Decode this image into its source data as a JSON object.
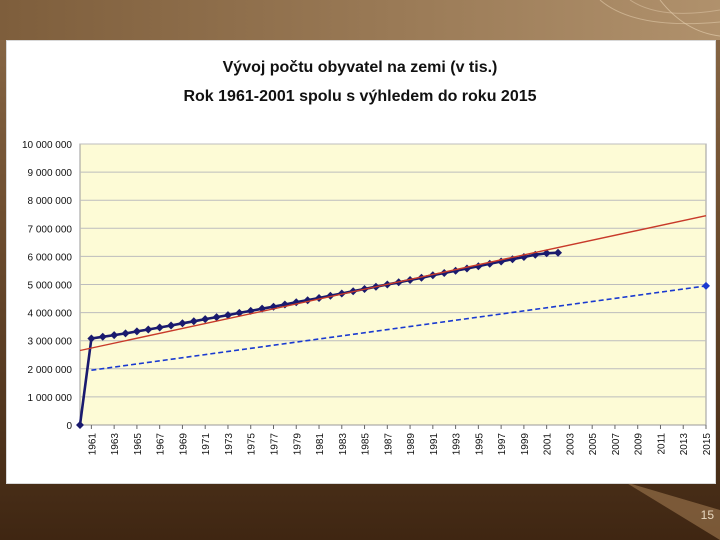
{
  "slide": {
    "page_number": "15",
    "colors": {
      "background": "#4a2c14",
      "panel": "#ffffff"
    }
  },
  "chart_data": {
    "type": "line",
    "title": "Vývoj počtu obyvatel na zemi (v tis.)",
    "subtitle": "Rok 1961-2001 spolu s výhledem do roku 2015",
    "xlabel": "",
    "ylabel": "",
    "ylim": [
      0,
      10000000
    ],
    "y_ticks": [
      0,
      1000000,
      2000000,
      3000000,
      4000000,
      5000000,
      6000000,
      7000000,
      8000000,
      9000000,
      10000000
    ],
    "y_tick_labels": [
      "0",
      "1 000 000",
      "2 000 000",
      "3 000 000",
      "4 000 000",
      "5 000 000",
      "6 000 000",
      "7 000 000",
      "8 000 000",
      "9 000 000",
      "10 000 000"
    ],
    "x_tick_labels": [
      "1961",
      "1963",
      "1965",
      "1967",
      "1969",
      "1971",
      "1973",
      "1975",
      "1977",
      "1979",
      "1981",
      "1983",
      "1985",
      "1987",
      "1989",
      "1991",
      "1993",
      "1995",
      "1997",
      "1999",
      "2001",
      "2003",
      "2005",
      "2007",
      "2009",
      "2011",
      "2013",
      "2015"
    ],
    "xlim": [
      1960,
      2015
    ],
    "grid": true,
    "plot_area_color": "#fdfbd6",
    "series": [
      {
        "style": "line-markers",
        "color": "#1a1a6e",
        "x": [
          1960,
          1961,
          1962,
          1963,
          1964,
          1965,
          1966,
          1967,
          1968,
          1969,
          1970,
          1971,
          1972,
          1973,
          1974,
          1975,
          1976,
          1977,
          1978,
          1979,
          1980,
          1981,
          1982,
          1983,
          1984,
          1985,
          1986,
          1987,
          1988,
          1989,
          1990,
          1991,
          1992,
          1993,
          1994,
          1995,
          1996,
          1997,
          1998,
          1999,
          2000,
          2001,
          2002
        ],
        "values": [
          0,
          3080000,
          3140000,
          3200000,
          3260000,
          3330000,
          3400000,
          3470000,
          3540000,
          3620000,
          3690000,
          3770000,
          3840000,
          3910000,
          3990000,
          4060000,
          4140000,
          4210000,
          4290000,
          4370000,
          4440000,
          4520000,
          4600000,
          4680000,
          4760000,
          4840000,
          4920000,
          5000000,
          5080000,
          5160000,
          5240000,
          5330000,
          5410000,
          5490000,
          5570000,
          5650000,
          5740000,
          5820000,
          5900000,
          5980000,
          6060000,
          6110000,
          6130000
        ]
      },
      {
        "style": "line",
        "color": "#c83a2a",
        "x": [
          1960,
          2015
        ],
        "values": [
          2650000,
          7450000
        ]
      },
      {
        "style": "dashed",
        "color": "#1a3ad0",
        "x": [
          1961,
          2015
        ],
        "values": [
          1950000,
          4950000
        ]
      }
    ]
  }
}
